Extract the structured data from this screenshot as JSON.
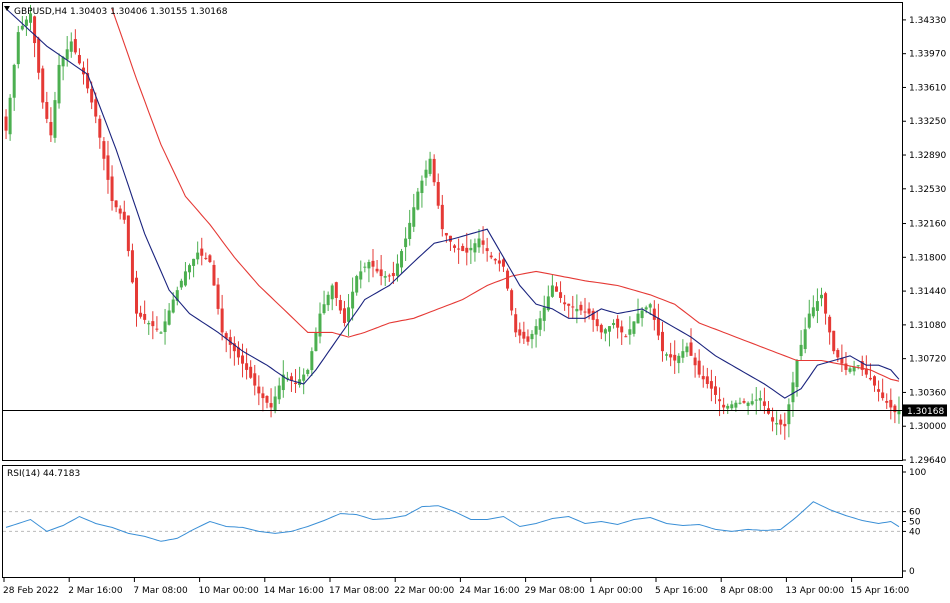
{
  "header": {
    "symbol_line": "GBPUSD,H4  1.30403  1.30406  1.30155  1.30168",
    "rsi_label": "RSI(14) 44.7183"
  },
  "colors": {
    "bull": "#4caf50",
    "bear": "#e53935",
    "ma_fast": "#1a237e",
    "ma_slow": "#e53935",
    "rsi": "#3a8fd6",
    "grid": "#bbbbbb",
    "price_tag_bg": "#000000",
    "price_tag_text": "#ffffff"
  },
  "chart_data": [
    {
      "type": "candlestick",
      "symbol": "GBPUSD",
      "timeframe": "H4",
      "ohlc_header": {
        "open": 1.30403,
        "high": 1.30406,
        "low": 1.30155,
        "close": 1.30168
      },
      "current_price_label": "1.30168",
      "current_price": 1.30168,
      "ylim": [
        1.2964,
        1.3451
      ],
      "yticks": [
        "1.34330",
        "1.33970",
        "1.33610",
        "1.33250",
        "1.32890",
        "1.32530",
        "1.32160",
        "1.31800",
        "1.31440",
        "1.31080",
        "1.30720",
        "1.30360",
        "1.30000",
        "1.29640"
      ],
      "xticks": [
        "28 Feb 2022",
        "2 Mar 16:00",
        "7 Mar 08:00",
        "10 Mar 00:00",
        "14 Mar 16:00",
        "17 Mar 08:00",
        "22 Mar 00:00",
        "24 Mar 16:00",
        "29 Mar 08:00",
        "1 Apr 00:00",
        "5 Apr 16:00",
        "8 Apr 08:00",
        "13 Apr 00:00",
        "15 Apr 16:00"
      ],
      "close_anchors": [
        [
          0,
          1.3315
        ],
        [
          3,
          1.342
        ],
        [
          6,
          1.344
        ],
        [
          9,
          1.3345
        ],
        [
          11,
          1.331
        ],
        [
          13,
          1.3385
        ],
        [
          16,
          1.341
        ],
        [
          19,
          1.3375
        ],
        [
          22,
          1.333
        ],
        [
          26,
          1.324
        ],
        [
          29,
          1.322
        ],
        [
          32,
          1.312
        ],
        [
          35,
          1.311
        ],
        [
          38,
          1.31
        ],
        [
          41,
          1.3135
        ],
        [
          44,
          1.3165
        ],
        [
          47,
          1.3185
        ],
        [
          50,
          1.3175
        ],
        [
          53,
          1.31
        ],
        [
          56,
          1.308
        ],
        [
          59,
          1.306
        ],
        [
          62,
          1.3035
        ],
        [
          65,
          1.302
        ],
        [
          68,
          1.3055
        ],
        [
          71,
          1.3045
        ],
        [
          74,
          1.306
        ],
        [
          77,
          1.312
        ],
        [
          80,
          1.315
        ],
        [
          83,
          1.311
        ],
        [
          86,
          1.316
        ],
        [
          89,
          1.3175
        ],
        [
          92,
          1.316
        ],
        [
          95,
          1.316
        ],
        [
          98,
          1.32
        ],
        [
          101,
          1.325
        ],
        [
          104,
          1.3285
        ],
        [
          107,
          1.321
        ],
        [
          110,
          1.319
        ],
        [
          113,
          1.3185
        ],
        [
          116,
          1.32
        ],
        [
          119,
          1.318
        ],
        [
          122,
          1.317
        ],
        [
          125,
          1.31
        ],
        [
          128,
          1.309
        ],
        [
          131,
          1.3115
        ],
        [
          134,
          1.315
        ],
        [
          137,
          1.313
        ],
        [
          140,
          1.3125
        ],
        [
          143,
          1.312
        ],
        [
          146,
          1.31
        ],
        [
          149,
          1.311
        ],
        [
          152,
          1.3095
        ],
        [
          155,
          1.312
        ],
        [
          158,
          1.313
        ],
        [
          161,
          1.308
        ],
        [
          164,
          1.307
        ],
        [
          167,
          1.3085
        ],
        [
          170,
          1.3055
        ],
        [
          173,
          1.304
        ],
        [
          176,
          1.302
        ],
        [
          179,
          1.3025
        ],
        [
          182,
          1.3025
        ],
        [
          185,
          1.303
        ],
        [
          188,
          1.3005
        ],
        [
          191,
          1.3
        ],
        [
          194,
          1.307
        ],
        [
          197,
          1.312
        ],
        [
          200,
          1.314
        ],
        [
          203,
          1.308
        ],
        [
          206,
          1.306
        ],
        [
          209,
          1.3065
        ],
        [
          212,
          1.305
        ],
        [
          215,
          1.303
        ],
        [
          218,
          1.3015
        ],
        [
          219,
          1.30168
        ]
      ],
      "ma_fast": [
        [
          0,
          1.3445
        ],
        [
          10,
          1.3405
        ],
        [
          20,
          1.3375
        ],
        [
          27,
          1.3295
        ],
        [
          34,
          1.3205
        ],
        [
          40,
          1.3145
        ],
        [
          45,
          1.312
        ],
        [
          52,
          1.31
        ],
        [
          58,
          1.308
        ],
        [
          64,
          1.3065
        ],
        [
          69,
          1.305
        ],
        [
          73,
          1.3045
        ],
        [
          76,
          1.306
        ],
        [
          80,
          1.3085
        ],
        [
          84,
          1.311
        ],
        [
          88,
          1.3135
        ],
        [
          94,
          1.315
        ],
        [
          100,
          1.3175
        ],
        [
          105,
          1.3195
        ],
        [
          110,
          1.32
        ],
        [
          114,
          1.3205
        ],
        [
          118,
          1.321
        ],
        [
          122,
          1.318
        ],
        [
          126,
          1.315
        ],
        [
          130,
          1.313
        ],
        [
          134,
          1.3125
        ],
        [
          138,
          1.3115
        ],
        [
          142,
          1.3115
        ],
        [
          146,
          1.3125
        ],
        [
          150,
          1.312
        ],
        [
          156,
          1.3125
        ],
        [
          162,
          1.311
        ],
        [
          168,
          1.3095
        ],
        [
          174,
          1.3075
        ],
        [
          180,
          1.306
        ],
        [
          186,
          1.3045
        ],
        [
          191,
          1.303
        ],
        [
          195,
          1.304
        ],
        [
          199,
          1.3065
        ],
        [
          203,
          1.307
        ],
        [
          207,
          1.3075
        ],
        [
          211,
          1.3065
        ],
        [
          214,
          1.3065
        ],
        [
          217,
          1.306
        ],
        [
          219,
          1.305
        ]
      ],
      "ma_slow": [
        [
          26,
          1.3445
        ],
        [
          32,
          1.337
        ],
        [
          38,
          1.33
        ],
        [
          44,
          1.3245
        ],
        [
          50,
          1.3215
        ],
        [
          56,
          1.318
        ],
        [
          62,
          1.315
        ],
        [
          68,
          1.3125
        ],
        [
          74,
          1.31
        ],
        [
          80,
          1.31
        ],
        [
          84,
          1.3095
        ],
        [
          88,
          1.31
        ],
        [
          94,
          1.311
        ],
        [
          100,
          1.3115
        ],
        [
          106,
          1.3125
        ],
        [
          112,
          1.3135
        ],
        [
          118,
          1.315
        ],
        [
          124,
          1.316
        ],
        [
          130,
          1.3165
        ],
        [
          136,
          1.316
        ],
        [
          142,
          1.3155
        ],
        [
          150,
          1.315
        ],
        [
          158,
          1.314
        ],
        [
          164,
          1.313
        ],
        [
          170,
          1.311
        ],
        [
          176,
          1.31
        ],
        [
          182,
          1.309
        ],
        [
          188,
          1.308
        ],
        [
          194,
          1.307
        ],
        [
          200,
          1.307
        ],
        [
          206,
          1.3065
        ],
        [
          212,
          1.306
        ],
        [
          217,
          1.305
        ],
        [
          219,
          1.3048
        ]
      ]
    },
    {
      "type": "line",
      "indicator": "RSI",
      "period": 14,
      "value_label": "44.7183",
      "ylim": [
        0,
        100
      ],
      "yticks": [
        "100",
        "60",
        "50",
        "40",
        "0"
      ],
      "levels": [
        60,
        40
      ],
      "values_anchors": [
        [
          0,
          44
        ],
        [
          6,
          52
        ],
        [
          10,
          40
        ],
        [
          14,
          46
        ],
        [
          18,
          55
        ],
        [
          22,
          48
        ],
        [
          26,
          44
        ],
        [
          30,
          38
        ],
        [
          34,
          35
        ],
        [
          38,
          30
        ],
        [
          42,
          33
        ],
        [
          46,
          42
        ],
        [
          50,
          50
        ],
        [
          54,
          45
        ],
        [
          58,
          44
        ],
        [
          62,
          40
        ],
        [
          66,
          38
        ],
        [
          70,
          40
        ],
        [
          74,
          45
        ],
        [
          78,
          51
        ],
        [
          82,
          58
        ],
        [
          86,
          57
        ],
        [
          90,
          52
        ],
        [
          94,
          53
        ],
        [
          98,
          56
        ],
        [
          102,
          65
        ],
        [
          106,
          66
        ],
        [
          110,
          60
        ],
        [
          114,
          52
        ],
        [
          118,
          52
        ],
        [
          122,
          55
        ],
        [
          126,
          45
        ],
        [
          130,
          48
        ],
        [
          134,
          53
        ],
        [
          138,
          55
        ],
        [
          142,
          48
        ],
        [
          146,
          50
        ],
        [
          150,
          47
        ],
        [
          154,
          52
        ],
        [
          158,
          54
        ],
        [
          162,
          48
        ],
        [
          166,
          46
        ],
        [
          170,
          47
        ],
        [
          174,
          42
        ],
        [
          178,
          40
        ],
        [
          182,
          42
        ],
        [
          186,
          41
        ],
        [
          190,
          42
        ],
        [
          194,
          55
        ],
        [
          198,
          70
        ],
        [
          202,
          62
        ],
        [
          206,
          56
        ],
        [
          210,
          51
        ],
        [
          214,
          48
        ],
        [
          217,
          50
        ],
        [
          219,
          44.7183
        ]
      ]
    }
  ]
}
